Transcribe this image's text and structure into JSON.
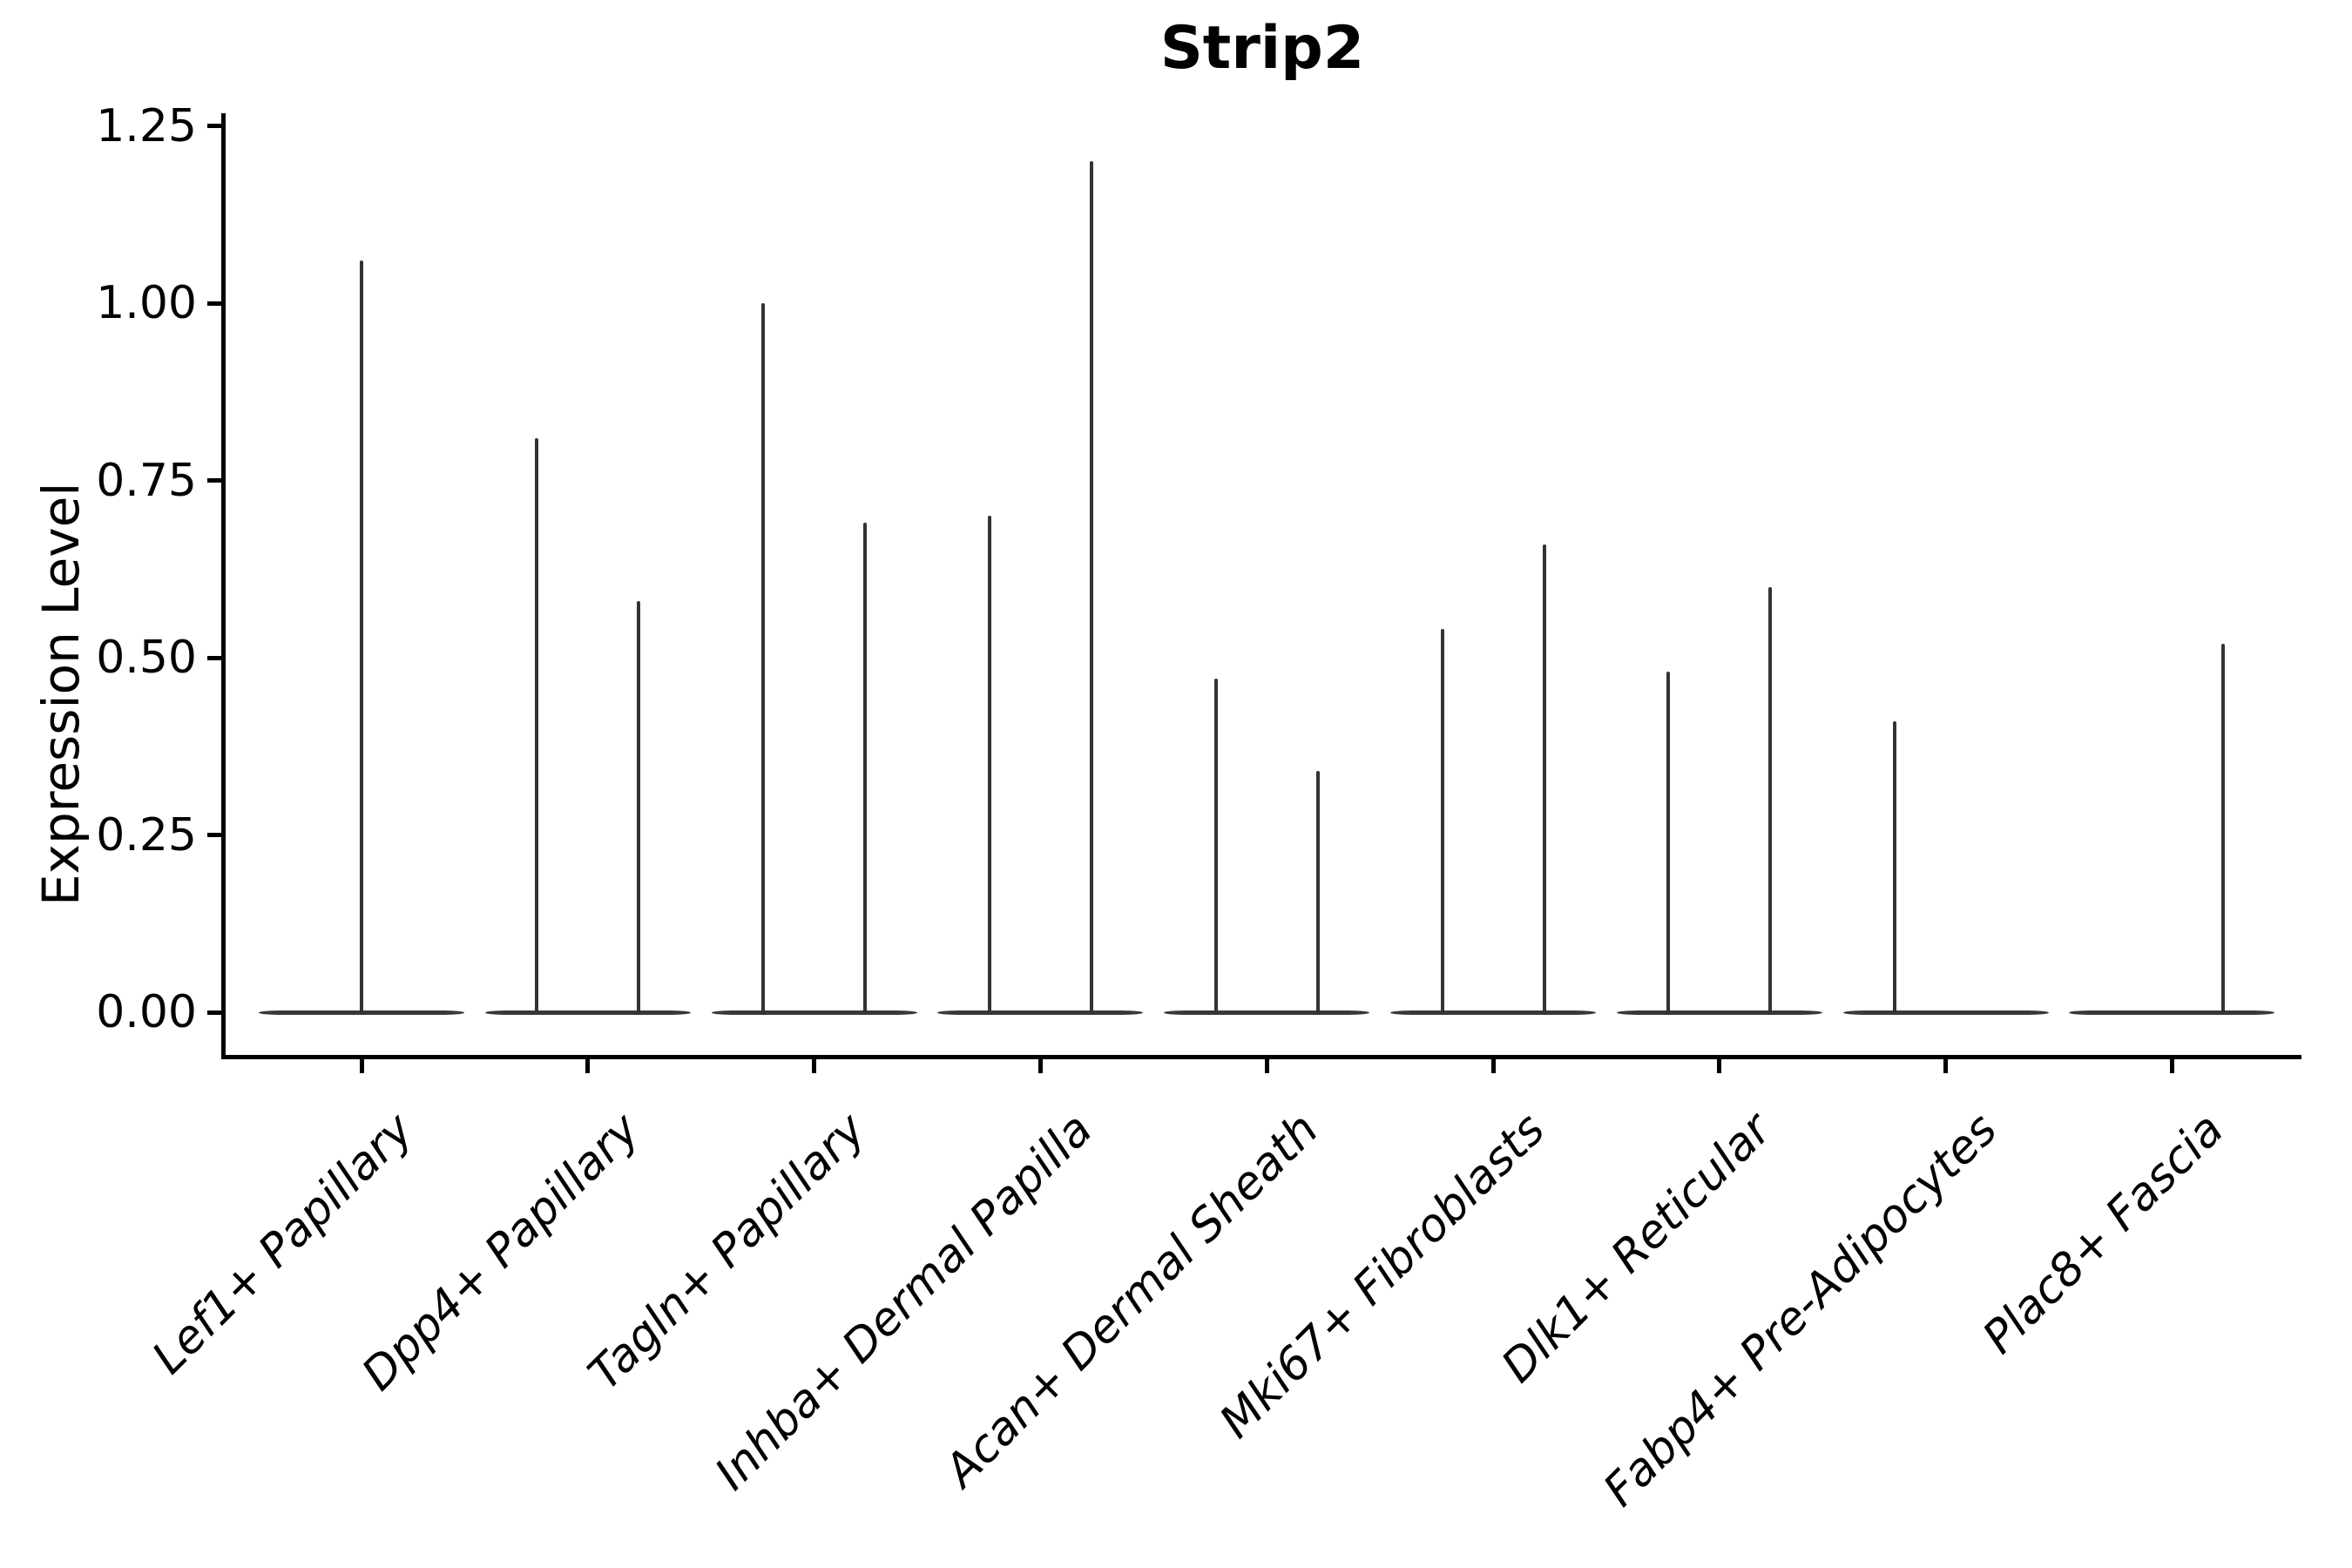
{
  "title": "Strip2",
  "axes": {
    "y": {
      "label": "Expression Level",
      "tick_labels": [
        "0.00",
        "0.25",
        "0.50",
        "0.75",
        "1.00",
        "1.25"
      ],
      "tick_values": [
        0.0,
        0.25,
        0.5,
        0.75,
        1.0,
        1.25
      ]
    },
    "x": {
      "label": "",
      "categories": [
        "Lef1+ Papillary",
        "Dpp4+ Papillary",
        "Tagln+ Papillary",
        "Inhba+ Dermal Papilla",
        "Acan+ Dermal Sheath",
        "Mki67+ Fibroblasts",
        "Dlk1+ Reticular",
        "Fabp4+ Pre-Adipocytes",
        "Plac8+ Fascia"
      ]
    }
  },
  "chart_data": {
    "type": "violin",
    "title": "Strip2",
    "xlabel": "",
    "ylabel": "Expression Level",
    "ylim": [
      0,
      1.25
    ],
    "y_ticks": [
      0.0,
      0.25,
      0.5,
      0.75,
      1.0,
      1.25
    ],
    "grid": false,
    "legend_position": "none",
    "style_note": "Very narrow spike-like violins: flat baseline at 0 with thin vertical stem up to the max expression value; most categories contain two side-by-side (dodged) violins",
    "categories": [
      "Lef1+ Papillary",
      "Dpp4+ Papillary",
      "Tagln+ Papillary",
      "Inhba+ Dermal Papilla",
      "Acan+ Dermal Sheath",
      "Mki67+ Fibroblasts",
      "Dlk1+ Reticular",
      "Fabp4+ Pre-Adipocytes",
      "Plac8+ Fascia"
    ],
    "series": [
      {
        "category": "Lef1+ Papillary",
        "violins": [
          {
            "position": "center",
            "max_expression": 1.06
          }
        ]
      },
      {
        "category": "Dpp4+ Papillary",
        "violins": [
          {
            "position": "left",
            "max_expression": 0.81
          },
          {
            "position": "right",
            "max_expression": 0.58
          }
        ]
      },
      {
        "category": "Tagln+ Papillary",
        "violins": [
          {
            "position": "left",
            "max_expression": 1.0
          },
          {
            "position": "right",
            "max_expression": 0.69
          }
        ]
      },
      {
        "category": "Inhba+ Dermal Papilla",
        "violins": [
          {
            "position": "left",
            "max_expression": 0.7
          },
          {
            "position": "right",
            "max_expression": 1.2
          }
        ]
      },
      {
        "category": "Acan+ Dermal Sheath",
        "violins": [
          {
            "position": "left",
            "max_expression": 0.47
          },
          {
            "position": "right",
            "max_expression": 0.34
          }
        ]
      },
      {
        "category": "Mki67+ Fibroblasts",
        "violins": [
          {
            "position": "left",
            "max_expression": 0.54
          },
          {
            "position": "right",
            "max_expression": 0.66
          }
        ]
      },
      {
        "category": "Dlk1+ Reticular",
        "violins": [
          {
            "position": "left",
            "max_expression": 0.48
          },
          {
            "position": "right",
            "max_expression": 0.6
          }
        ]
      },
      {
        "category": "Fabp4+ Pre-Adipocytes",
        "violins": [
          {
            "position": "left",
            "max_expression": 0.41
          }
        ]
      },
      {
        "category": "Plac8+ Fascia",
        "violins": [
          {
            "position": "right",
            "max_expression": 0.52
          }
        ]
      }
    ]
  },
  "colors": {
    "background": "#ffffff",
    "axis": "#000000",
    "text": "#000000",
    "violin_stroke": "#383838"
  }
}
